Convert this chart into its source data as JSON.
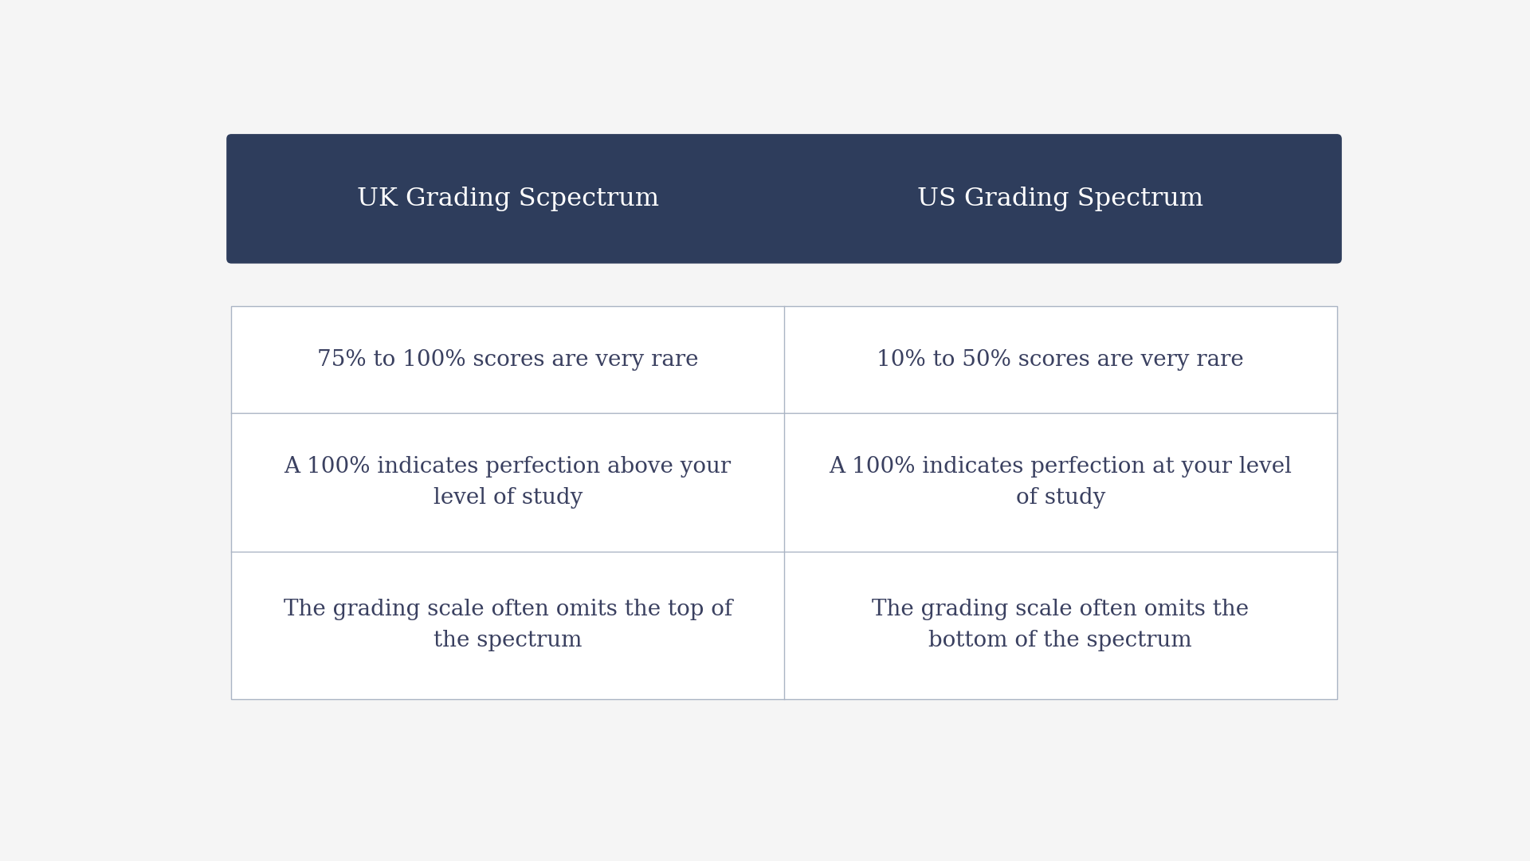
{
  "background_color": "#f5f5f5",
  "header_bg_color": "#2e3d5c",
  "header_text_color": "#ffffff",
  "table_bg_color": "#ffffff",
  "table_border_color": "#aab4c4",
  "cell_text_color": "#3a4060",
  "header_left": "UK Grading Scpectrum",
  "header_right": "US Grading Spectrum",
  "rows": [
    [
      "75% to 100% scores are very rare",
      "10% to 50% scores are very rare"
    ],
    [
      "A 100% indicates perfection above your\nlevel of study",
      "A 100% indicates perfection at your level\nof study"
    ],
    [
      "The grading scale often omits the top of\nthe spectrum",
      "The grading scale often omits the\nbottom of the spectrum"
    ]
  ],
  "header_fontsize": 23,
  "cell_fontsize": 20,
  "fig_width": 19.2,
  "fig_height": 10.8
}
